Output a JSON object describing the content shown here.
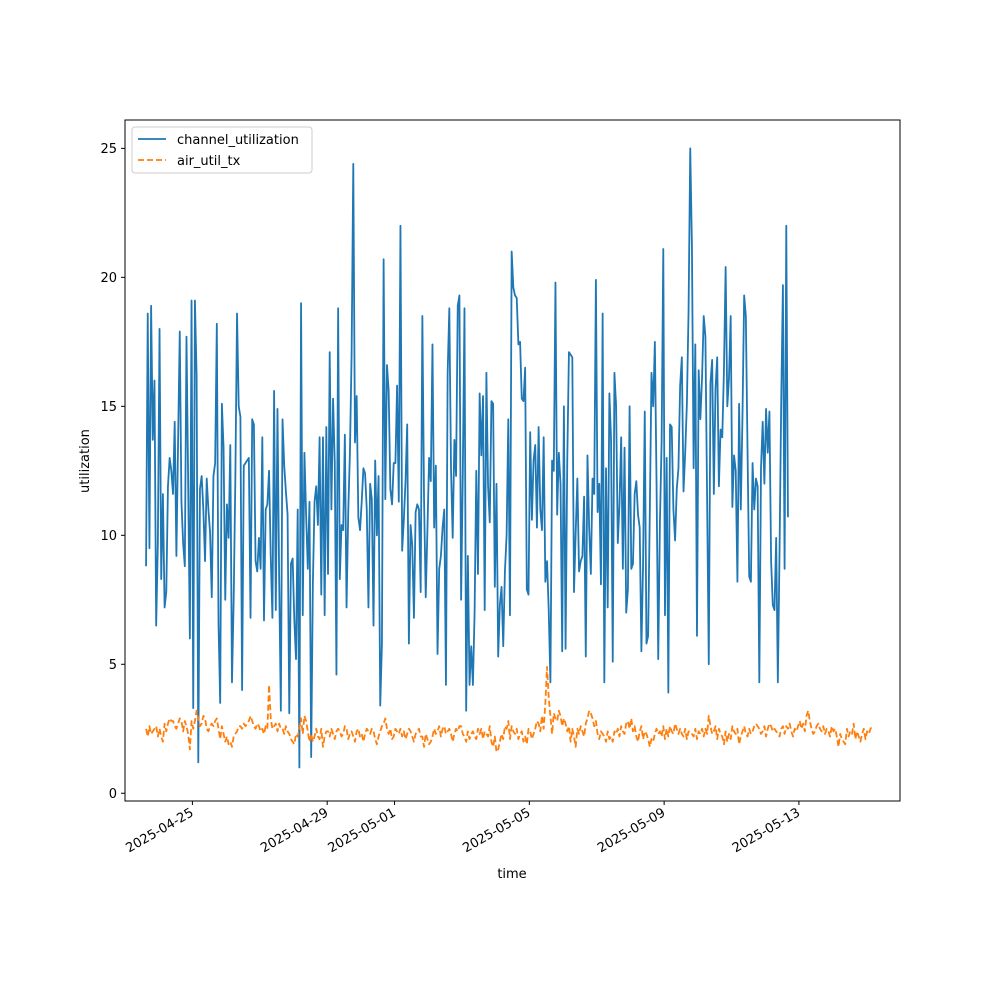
{
  "chart_data": {
    "type": "line",
    "title": "",
    "xlabel": "time",
    "ylabel": "utilization",
    "xlim": [
      "2025-04-23 00:00",
      "2025-05-16 00:00"
    ],
    "ylim": [
      -0.3,
      26.1
    ],
    "x_ticks": [
      "2025-04-25",
      "2025-04-29",
      "2025-05-01",
      "2025-05-05",
      "2025-05-09",
      "2025-05-13"
    ],
    "y_ticks": [
      0,
      5,
      10,
      15,
      20,
      25
    ],
    "grid": false,
    "legend_position": "top-left",
    "x_start": "2025-04-23 15:00",
    "x_step_hours": 1.2,
    "series": [
      {
        "name": "channel_utilization",
        "color": "#1f77b4",
        "style": "solid",
        "values": [
          8.8,
          18.6,
          9.5,
          18.9,
          13.7,
          16.0,
          6.5,
          9.7,
          18.0,
          8.3,
          11.6,
          7.2,
          7.8,
          11.9,
          13.0,
          12.5,
          11.6,
          14.4,
          9.2,
          13.6,
          17.9,
          11.3,
          9.7,
          8.8,
          17.7,
          12.0,
          6.0,
          19.1,
          3.3,
          19.1,
          16.2,
          1.2,
          11.8,
          12.3,
          11.0,
          9.0,
          12.2,
          11.0,
          10.1,
          7.6,
          12.3,
          12.8,
          18.2,
          6.6,
          3.5,
          15.1,
          13.4,
          7.5,
          11.2,
          9.9,
          13.5,
          4.3,
          7.5,
          12.2,
          18.6,
          15.0,
          14.6,
          4.0,
          12.7,
          12.8,
          12.9,
          13.0,
          6.8,
          14.5,
          14.3,
          9.0,
          8.6,
          9.9,
          8.7,
          13.8,
          6.7,
          11.0,
          11.2,
          12.5,
          9.2,
          6.8,
          15.6,
          7.1,
          14.9,
          8.3,
          3.2,
          14.5,
          12.7,
          11.7,
          10.8,
          3.1,
          8.9,
          9.1,
          6.7,
          5.2,
          11.0,
          1.0,
          19.0,
          6.9,
          13.2,
          10.8,
          8.7,
          11.3,
          1.4,
          8.1,
          11.3,
          11.9,
          10.4,
          13.8,
          7.7,
          13.8,
          6.9,
          14.2,
          8.5,
          17.1,
          11.0,
          15.3,
          12.8,
          4.6,
          18.8,
          8.3,
          10.4,
          10.2,
          13.9,
          7.2,
          10.9,
          13.2,
          17.0,
          24.4,
          13.6,
          15.4,
          10.7,
          10.2,
          11.3,
          12.6,
          12.4,
          11.0,
          7.2,
          12.0,
          11.4,
          6.5,
          12.9,
          10.0,
          12.3,
          3.4,
          5.8,
          20.7,
          11.4,
          16.6,
          15.6,
          11.8,
          11.2,
          12.8,
          12.8,
          15.8,
          11.3,
          22.0,
          9.4,
          10.6,
          12.1,
          14.3,
          5.8,
          10.4,
          9.6,
          6.8,
          10.9,
          11.2,
          11.0,
          7.8,
          18.5,
          11.4,
          7.6,
          10.2,
          13.0,
          12.1,
          17.4,
          10.3,
          12.7,
          5.4,
          8.7,
          9.2,
          10.3,
          11.0,
          4.2,
          16.3,
          18.8,
          12.6,
          9.9,
          13.7,
          12.3,
          18.9,
          19.3,
          7.5,
          12.4,
          18.8,
          3.2,
          9.2,
          4.2,
          5.7,
          4.2,
          7.0,
          12.5,
          8.5,
          15.5,
          13.1,
          15.4,
          7.1,
          16.3,
          11.9,
          10.5,
          15.2,
          15.1,
          8.0,
          12.0,
          5.3,
          7.3,
          8.0,
          5.7,
          8.6,
          10.0,
          14.5,
          6.9,
          21.0,
          19.6,
          19.3,
          19.2,
          17.4,
          17.5,
          15.3,
          15.2,
          16.5,
          7.9,
          7.7,
          14.0,
          10.6,
          12.9,
          13.5,
          10.3,
          14.2,
          11.0,
          10.2,
          13.8,
          8.2,
          9.0,
          7.1,
          4.3,
          12.9,
          12.5,
          19.8,
          10.8,
          13.2,
          12.0,
          5.5,
          15.0,
          5.6,
          12.9,
          17.1,
          17.0,
          16.9,
          7.8,
          10.1,
          12.2,
          8.6,
          9.0,
          9.2,
          11.5,
          5.3,
          13.1,
          10.3,
          8.5,
          12.2,
          11.6,
          19.9,
          10.9,
          12.0,
          8.1,
          18.6,
          4.3,
          12.6,
          7.2,
          15.5,
          13.7,
          5.1,
          16.3,
          15.0,
          9.7,
          11.2,
          13.8,
          8.7,
          13.4,
          7.0,
          7.9,
          15.0,
          8.7,
          8.9,
          11.6,
          12.1,
          10.8,
          10.3,
          5.5,
          8.9,
          14.8,
          5.8,
          6.1,
          10.9,
          16.3,
          15.0,
          17.5,
          12.0,
          5.2,
          10.5,
          13.6,
          21.1,
          6.9,
          13.0,
          3.9,
          14.3,
          14.2,
          11.0,
          9.8,
          11.8,
          12.6,
          15.8,
          16.9,
          11.7,
          13.2,
          15.1,
          18.7,
          25.0,
          21.2,
          12.6,
          17.4,
          6.1,
          16.4,
          14.5,
          16.1,
          18.5,
          17.7,
          11.5,
          5.0,
          15.9,
          16.8,
          11.6,
          15.7,
          16.9,
          11.9,
          14.1,
          13.8,
          16.4,
          20.4,
          15.0,
          16.1,
          18.5,
          11.1,
          13.1,
          12.5,
          8.2,
          15.1,
          11.0,
          14.6,
          19.3,
          18.5,
          13.3,
          8.4,
          8.2,
          12.8,
          11.0,
          12.2,
          11.9,
          4.3,
          12.6,
          14.4,
          12.0,
          14.9,
          13.2,
          14.8,
          9.0,
          7.3,
          7.1,
          9.9,
          4.3,
          9.4,
          15.2,
          19.7,
          8.7,
          22.0,
          10.7
        ]
      },
      {
        "name": "air_util_tx",
        "color": "#ff7f0e",
        "style": "dashed",
        "values": [
          2.5,
          2.2,
          2.6,
          2.3,
          2.4,
          2.5,
          2.6,
          2.2,
          2.5,
          2.2,
          2.0,
          2.7,
          2.4,
          2.7,
          2.9,
          2.8,
          2.8,
          2.6,
          2.5,
          2.7,
          2.9,
          2.8,
          2.4,
          2.8,
          2.6,
          2.3,
          1.7,
          2.8,
          2.5,
          2.8,
          3.2,
          2.9,
          2.6,
          2.7,
          3.0,
          2.9,
          2.5,
          2.4,
          2.6,
          2.7,
          2.6,
          2.8,
          2.9,
          2.5,
          2.1,
          2.6,
          2.3,
          2.0,
          2.2,
          1.9,
          2.0,
          1.8,
          2.2,
          2.3,
          2.4,
          2.6,
          2.6,
          2.5,
          2.7,
          2.6,
          2.7,
          2.8,
          3.0,
          2.8,
          2.6,
          2.5,
          2.7,
          2.6,
          2.4,
          2.5,
          2.3,
          2.6,
          2.5,
          4.2,
          2.9,
          2.5,
          2.6,
          2.7,
          2.4,
          2.7,
          2.5,
          2.5,
          2.3,
          2.6,
          2.4,
          2.3,
          2.1,
          2.0,
          1.9,
          2.3,
          2.2,
          2.5,
          2.9,
          2.3,
          3.0,
          2.8,
          2.4,
          2.0,
          2.3,
          2.0,
          2.2,
          2.5,
          2.2,
          2.1,
          2.5,
          1.8,
          2.2,
          2.4,
          2.4,
          2.2,
          2.5,
          2.3,
          2.1,
          2.4,
          2.5,
          2.4,
          2.2,
          2.3,
          2.6,
          2.5,
          2.1,
          2.3,
          2.4,
          2.2,
          2.0,
          2.4,
          2.5,
          2.2,
          2.3,
          2.0,
          2.3,
          2.5,
          2.4,
          2.3,
          2.5,
          2.4,
          2.1,
          1.9,
          2.2,
          2.4,
          2.6,
          2.7,
          2.9,
          2.5,
          2.3,
          2.5,
          2.1,
          2.2,
          2.5,
          2.4,
          2.3,
          2.5,
          2.2,
          2.4,
          2.1,
          2.3,
          2.5,
          2.4,
          2.2,
          2.0,
          2.3,
          2.4,
          2.5,
          2.2,
          2.2,
          1.8,
          2.3,
          2.1,
          1.9,
          2.0,
          2.2,
          2.5,
          2.3,
          2.4,
          2.6,
          2.2,
          2.5,
          2.6,
          2.3,
          2.4,
          2.5,
          2.3,
          2.0,
          2.3,
          2.5,
          2.4,
          2.6,
          2.6,
          2.3,
          2.2,
          2.0,
          2.4,
          2.1,
          2.3,
          2.4,
          2.2,
          2.1,
          2.5,
          2.3,
          2.5,
          2.1,
          2.4,
          2.3,
          2.2,
          2.6,
          2.0,
          1.8,
          2.2,
          1.6,
          1.7,
          2.0,
          2.3,
          2.1,
          2.6,
          2.5,
          2.8,
          2.1,
          2.6,
          2.4,
          2.3,
          2.5,
          2.1,
          2.3,
          2.4,
          2.0,
          2.2,
          1.9,
          2.5,
          2.4,
          2.1,
          2.3,
          2.5,
          2.8,
          2.7,
          2.4,
          3.0,
          2.5,
          3.5,
          4.9,
          3.7,
          3.0,
          2.3,
          3.1,
          2.9,
          2.8,
          3.2,
          3.0,
          2.6,
          2.9,
          2.7,
          2.4,
          2.6,
          2.0,
          2.5,
          2.2,
          1.8,
          2.5,
          2.3,
          2.6,
          2.4,
          2.2,
          2.7,
          2.9,
          3.2,
          3.1,
          2.9,
          2.6,
          2.8,
          2.3,
          2.1,
          2.4,
          2.3,
          2.2,
          2.0,
          2.4,
          2.1,
          2.2,
          2.0,
          2.4,
          2.3,
          2.5,
          2.2,
          2.6,
          2.4,
          2.3,
          2.7,
          2.8,
          2.5,
          2.9,
          2.4,
          2.6,
          2.2,
          2.0,
          2.4,
          2.6,
          2.1,
          2.4,
          2.3,
          2.1,
          1.8,
          2.1,
          2.0,
          2.3,
          2.5,
          2.3,
          2.4,
          2.2,
          2.6,
          2.1,
          2.5,
          2.2,
          2.6,
          2.4,
          2.3,
          2.7,
          2.5,
          2.3,
          2.5,
          2.3,
          2.2,
          2.5,
          2.1,
          2.4,
          2.4,
          2.3,
          2.2,
          2.5,
          2.1,
          2.4,
          2.3,
          2.5,
          2.2,
          2.5,
          2.3,
          3.0,
          2.6,
          2.3,
          2.4,
          2.6,
          2.1,
          2.5,
          2.3,
          2.2,
          1.9,
          2.4,
          2.0,
          2.3,
          2.1,
          2.6,
          2.4,
          2.3,
          2.5,
          1.9,
          2.2,
          2.4,
          2.6,
          2.3,
          2.2,
          2.5,
          2.3,
          2.4,
          2.6,
          2.7,
          2.6,
          2.5,
          2.3,
          2.4,
          2.6,
          2.2,
          2.5,
          2.7,
          2.6,
          2.4,
          2.5,
          2.4,
          2.3,
          2.2,
          2.5,
          2.6,
          2.3,
          2.6,
          2.5,
          2.7,
          2.4,
          2.2,
          2.5,
          2.4,
          2.6,
          2.8,
          2.5,
          2.7,
          2.4,
          3.0,
          3.2,
          2.8,
          2.5,
          2.3,
          2.4,
          2.6,
          2.7,
          2.5,
          2.4,
          2.6,
          2.3,
          2.5,
          2.4,
          2.2,
          2.6,
          2.4,
          2.5,
          2.2,
          1.8,
          2.3,
          2.1,
          2.0,
          1.9,
          2.5,
          2.2,
          2.4,
          2.3,
          2.7,
          2.1,
          2.4,
          2.2,
          2.0,
          2.3,
          2.5,
          2.1,
          2.4,
          2.3,
          2.5,
          2.6
        ]
      }
    ]
  }
}
